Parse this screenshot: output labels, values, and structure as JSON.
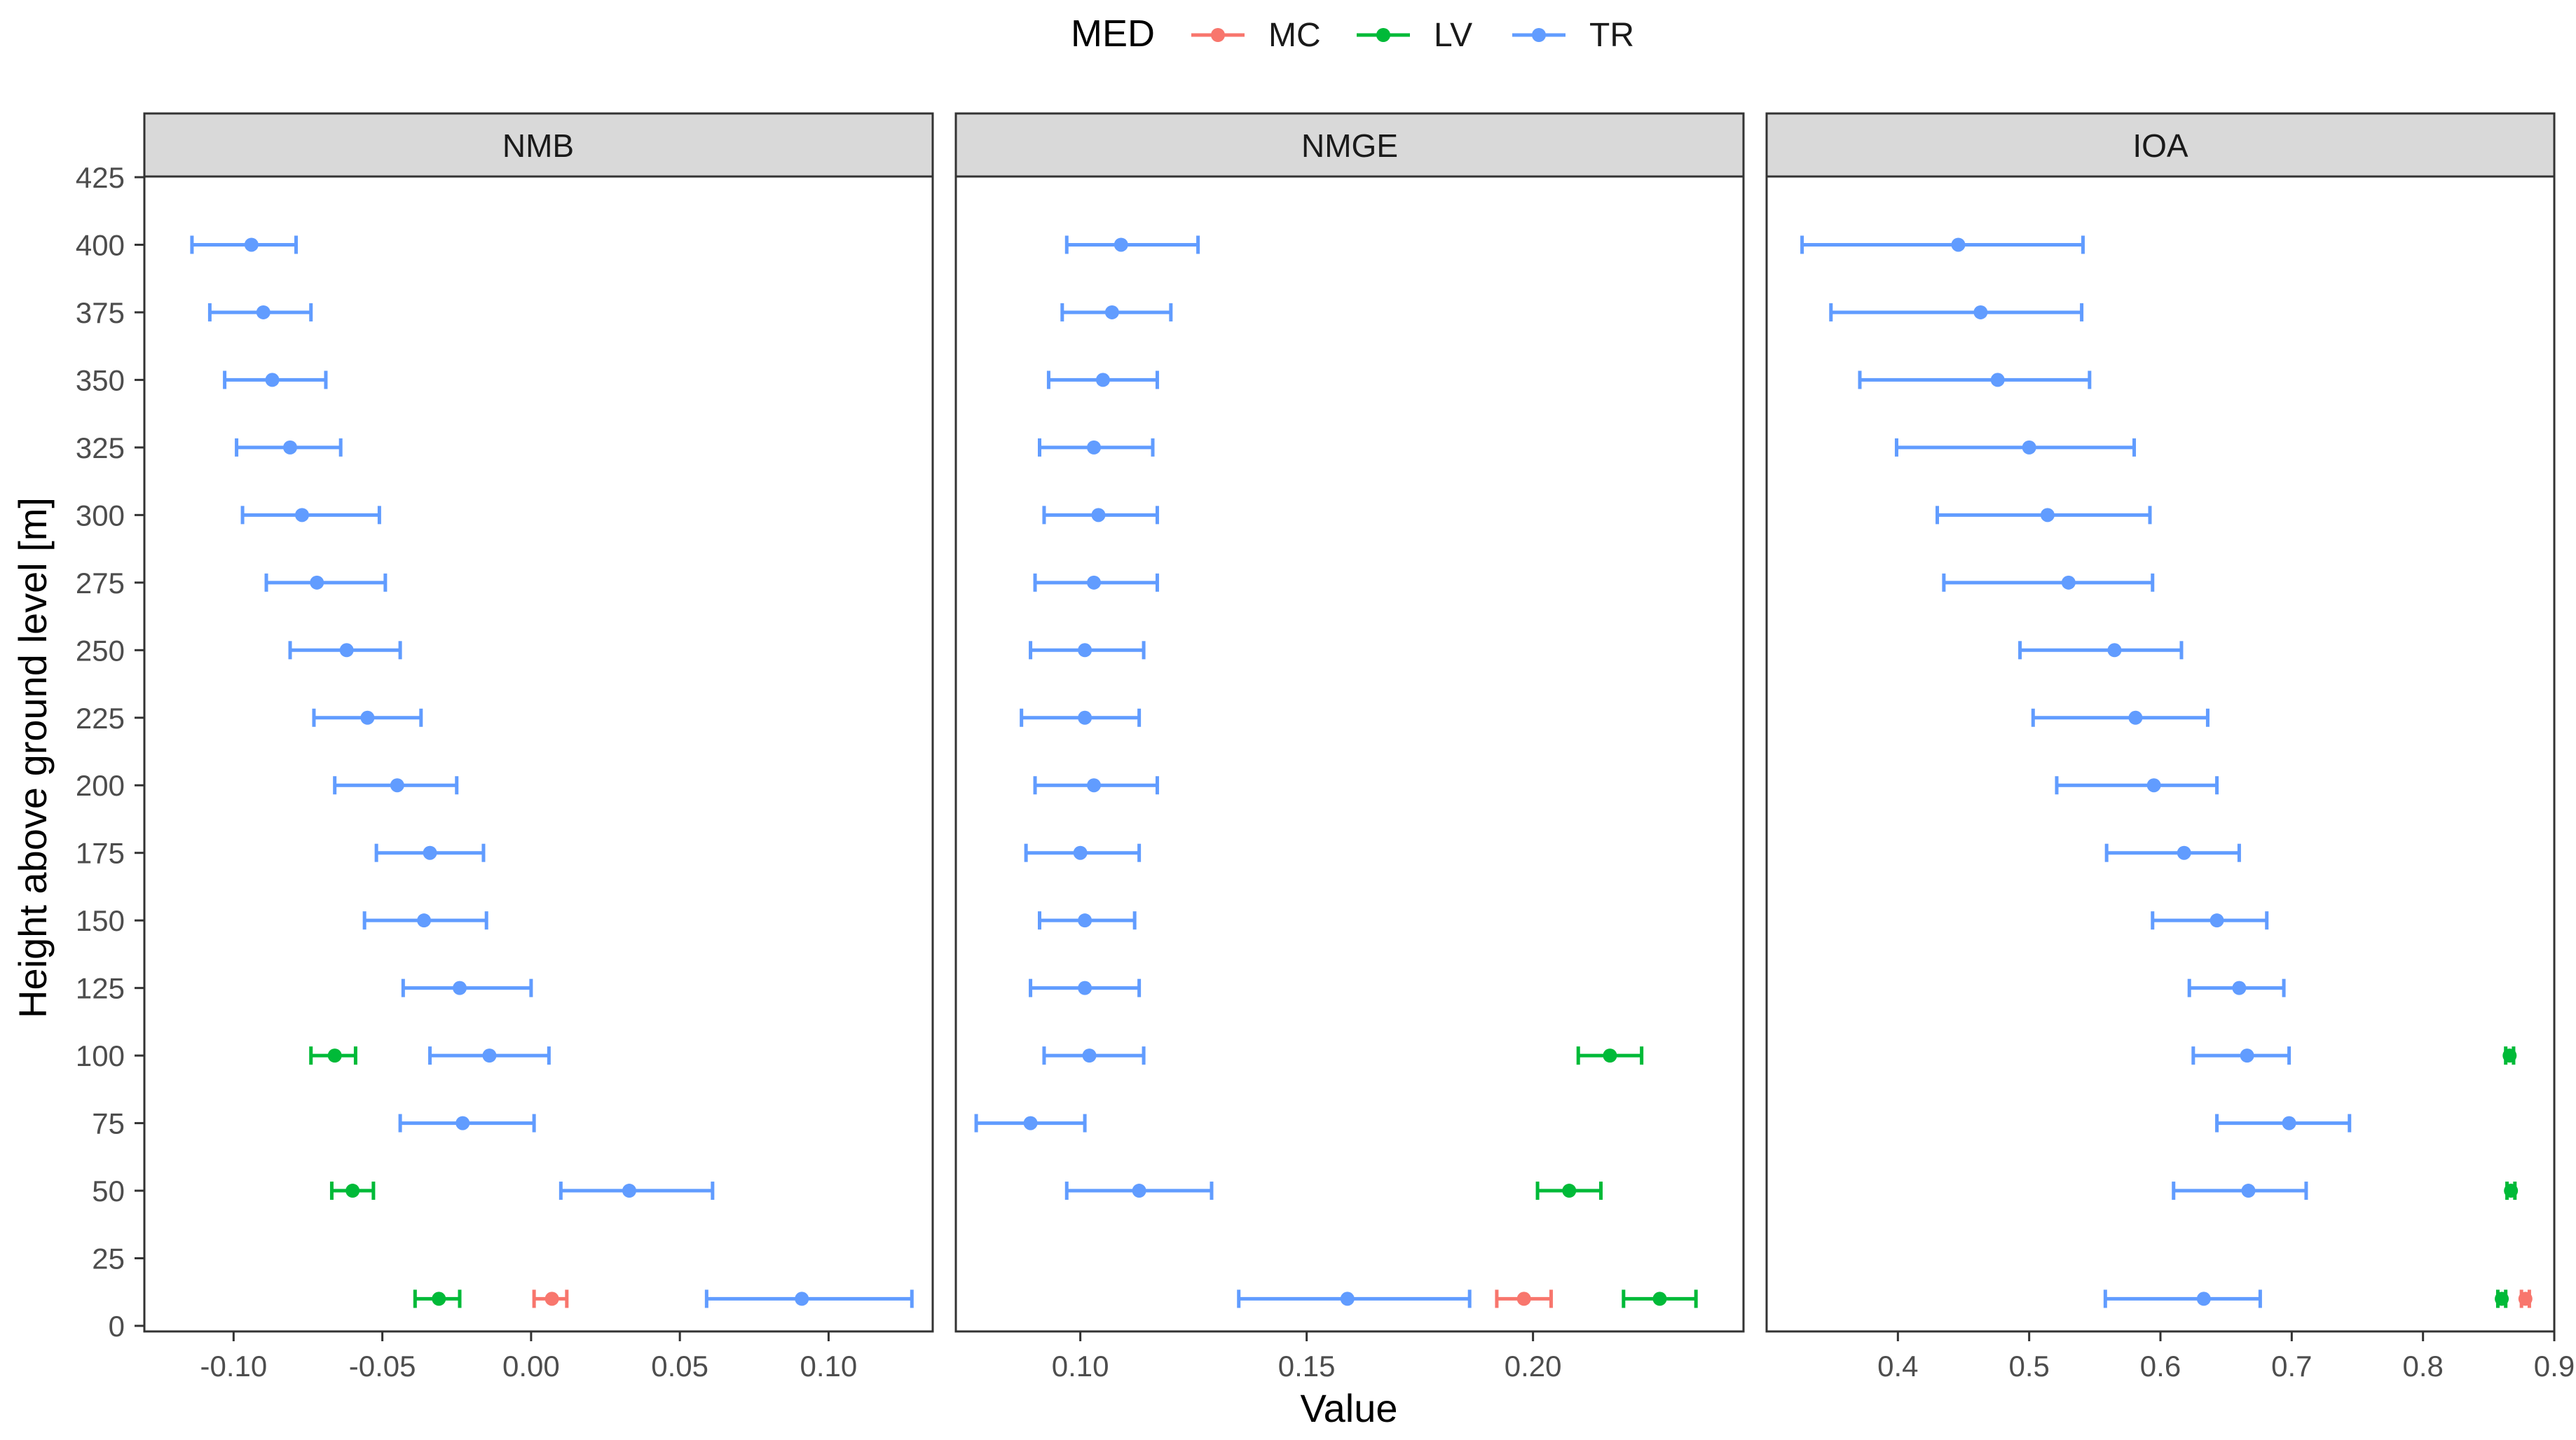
{
  "legend": {
    "title": "MED",
    "entries": [
      {
        "label": "MC",
        "color": "#F8766D"
      },
      {
        "label": "LV",
        "color": "#00BA38"
      },
      {
        "label": "TR",
        "color": "#619CFF"
      }
    ]
  },
  "ylabel": "Height above ground level [m]",
  "xlabel": "Value",
  "chart_data": {
    "type": "scatter",
    "subtype": "point-with-horizontal-errorbars",
    "ylim": [
      0,
      425
    ],
    "yticks": [
      0,
      25,
      50,
      75,
      100,
      125,
      150,
      175,
      200,
      225,
      250,
      275,
      300,
      325,
      350,
      375,
      400,
      425
    ],
    "panels": [
      {
        "title": "NMB",
        "xlim": [
          -0.13,
          0.135
        ],
        "xticks": [
          -0.1,
          -0.05,
          0.0,
          0.05,
          0.1
        ],
        "xtick_labels": [
          "-0.10",
          "-0.05",
          "0.00",
          "0.05",
          "0.10"
        ],
        "series": [
          {
            "name": "MC",
            "points": [
              {
                "y": 10,
                "x": 0.007,
                "lo": 0.001,
                "hi": 0.012
              }
            ]
          },
          {
            "name": "LV",
            "points": [
              {
                "y": 10,
                "x": -0.031,
                "lo": -0.039,
                "hi": -0.024
              },
              {
                "y": 50,
                "x": -0.06,
                "lo": -0.067,
                "hi": -0.053
              },
              {
                "y": 100,
                "x": -0.066,
                "lo": -0.074,
                "hi": -0.059
              }
            ]
          },
          {
            "name": "TR",
            "points": [
              {
                "y": 10,
                "x": 0.091,
                "lo": 0.059,
                "hi": 0.128
              },
              {
                "y": 50,
                "x": 0.033,
                "lo": 0.01,
                "hi": 0.061
              },
              {
                "y": 75,
                "x": -0.023,
                "lo": -0.044,
                "hi": 0.001
              },
              {
                "y": 100,
                "x": -0.014,
                "lo": -0.034,
                "hi": 0.006
              },
              {
                "y": 125,
                "x": -0.024,
                "lo": -0.043,
                "hi": 0.0
              },
              {
                "y": 150,
                "x": -0.036,
                "lo": -0.056,
                "hi": -0.015
              },
              {
                "y": 175,
                "x": -0.034,
                "lo": -0.052,
                "hi": -0.016
              },
              {
                "y": 200,
                "x": -0.045,
                "lo": -0.066,
                "hi": -0.025
              },
              {
                "y": 225,
                "x": -0.055,
                "lo": -0.073,
                "hi": -0.037
              },
              {
                "y": 250,
                "x": -0.062,
                "lo": -0.081,
                "hi": -0.044
              },
              {
                "y": 275,
                "x": -0.072,
                "lo": -0.089,
                "hi": -0.049
              },
              {
                "y": 300,
                "x": -0.077,
                "lo": -0.097,
                "hi": -0.051
              },
              {
                "y": 325,
                "x": -0.081,
                "lo": -0.099,
                "hi": -0.064
              },
              {
                "y": 350,
                "x": -0.087,
                "lo": -0.103,
                "hi": -0.069
              },
              {
                "y": 375,
                "x": -0.09,
                "lo": -0.108,
                "hi": -0.074
              },
              {
                "y": 400,
                "x": -0.094,
                "lo": -0.114,
                "hi": -0.079
              }
            ]
          }
        ]
      },
      {
        "title": "NMGE",
        "xlim": [
          0.0725,
          0.2465
        ],
        "xticks": [
          0.1,
          0.15,
          0.2
        ],
        "xtick_labels": [
          "0.10",
          "0.15",
          "0.20"
        ],
        "series": [
          {
            "name": "MC",
            "points": [
              {
                "y": 10,
                "x": 0.198,
                "lo": 0.192,
                "hi": 0.204
              }
            ]
          },
          {
            "name": "LV",
            "points": [
              {
                "y": 10,
                "x": 0.228,
                "lo": 0.22,
                "hi": 0.236
              },
              {
                "y": 50,
                "x": 0.208,
                "lo": 0.201,
                "hi": 0.215
              },
              {
                "y": 100,
                "x": 0.217,
                "lo": 0.21,
                "hi": 0.224
              }
            ]
          },
          {
            "name": "TR",
            "points": [
              {
                "y": 10,
                "x": 0.159,
                "lo": 0.135,
                "hi": 0.186
              },
              {
                "y": 50,
                "x": 0.113,
                "lo": 0.097,
                "hi": 0.129
              },
              {
                "y": 75,
                "x": 0.089,
                "lo": 0.077,
                "hi": 0.101
              },
              {
                "y": 100,
                "x": 0.102,
                "lo": 0.092,
                "hi": 0.114
              },
              {
                "y": 125,
                "x": 0.101,
                "lo": 0.089,
                "hi": 0.113
              },
              {
                "y": 150,
                "x": 0.101,
                "lo": 0.091,
                "hi": 0.112
              },
              {
                "y": 175,
                "x": 0.1,
                "lo": 0.088,
                "hi": 0.113
              },
              {
                "y": 200,
                "x": 0.103,
                "lo": 0.09,
                "hi": 0.117
              },
              {
                "y": 225,
                "x": 0.101,
                "lo": 0.087,
                "hi": 0.113
              },
              {
                "y": 250,
                "x": 0.101,
                "lo": 0.089,
                "hi": 0.114
              },
              {
                "y": 275,
                "x": 0.103,
                "lo": 0.09,
                "hi": 0.117
              },
              {
                "y": 300,
                "x": 0.104,
                "lo": 0.092,
                "hi": 0.117
              },
              {
                "y": 325,
                "x": 0.103,
                "lo": 0.091,
                "hi": 0.116
              },
              {
                "y": 350,
                "x": 0.105,
                "lo": 0.093,
                "hi": 0.117
              },
              {
                "y": 375,
                "x": 0.107,
                "lo": 0.096,
                "hi": 0.12
              },
              {
                "y": 400,
                "x": 0.109,
                "lo": 0.097,
                "hi": 0.126
              }
            ]
          }
        ]
      },
      {
        "title": "IOA",
        "xlim": [
          0.3,
          0.9
        ],
        "xticks": [
          0.4,
          0.5,
          0.6,
          0.7,
          0.8,
          0.9
        ],
        "xtick_labels": [
          "0.4",
          "0.5",
          "0.6",
          "0.7",
          "0.8",
          "0.9"
        ],
        "series": [
          {
            "name": "MC",
            "points": [
              {
                "y": 10,
                "x": 0.878,
                "lo": 0.875,
                "hi": 0.881
              }
            ]
          },
          {
            "name": "LV",
            "points": [
              {
                "y": 10,
                "x": 0.86,
                "lo": 0.857,
                "hi": 0.863
              },
              {
                "y": 50,
                "x": 0.867,
                "lo": 0.864,
                "hi": 0.87
              },
              {
                "y": 100,
                "x": 0.866,
                "lo": 0.863,
                "hi": 0.869
              }
            ]
          },
          {
            "name": "TR",
            "points": [
              {
                "y": 10,
                "x": 0.633,
                "lo": 0.558,
                "hi": 0.676
              },
              {
                "y": 50,
                "x": 0.667,
                "lo": 0.61,
                "hi": 0.711
              },
              {
                "y": 75,
                "x": 0.698,
                "lo": 0.643,
                "hi": 0.744
              },
              {
                "y": 100,
                "x": 0.666,
                "lo": 0.625,
                "hi": 0.698
              },
              {
                "y": 125,
                "x": 0.66,
                "lo": 0.622,
                "hi": 0.694
              },
              {
                "y": 150,
                "x": 0.643,
                "lo": 0.594,
                "hi": 0.681
              },
              {
                "y": 175,
                "x": 0.618,
                "lo": 0.559,
                "hi": 0.66
              },
              {
                "y": 200,
                "x": 0.595,
                "lo": 0.521,
                "hi": 0.643
              },
              {
                "y": 225,
                "x": 0.581,
                "lo": 0.503,
                "hi": 0.636
              },
              {
                "y": 250,
                "x": 0.565,
                "lo": 0.493,
                "hi": 0.616
              },
              {
                "y": 275,
                "x": 0.53,
                "lo": 0.435,
                "hi": 0.594
              },
              {
                "y": 300,
                "x": 0.514,
                "lo": 0.43,
                "hi": 0.592
              },
              {
                "y": 325,
                "x": 0.5,
                "lo": 0.399,
                "hi": 0.58
              },
              {
                "y": 350,
                "x": 0.476,
                "lo": 0.371,
                "hi": 0.546
              },
              {
                "y": 375,
                "x": 0.463,
                "lo": 0.349,
                "hi": 0.54
              },
              {
                "y": 400,
                "x": 0.446,
                "lo": 0.327,
                "hi": 0.541
              }
            ]
          }
        ]
      }
    ]
  }
}
